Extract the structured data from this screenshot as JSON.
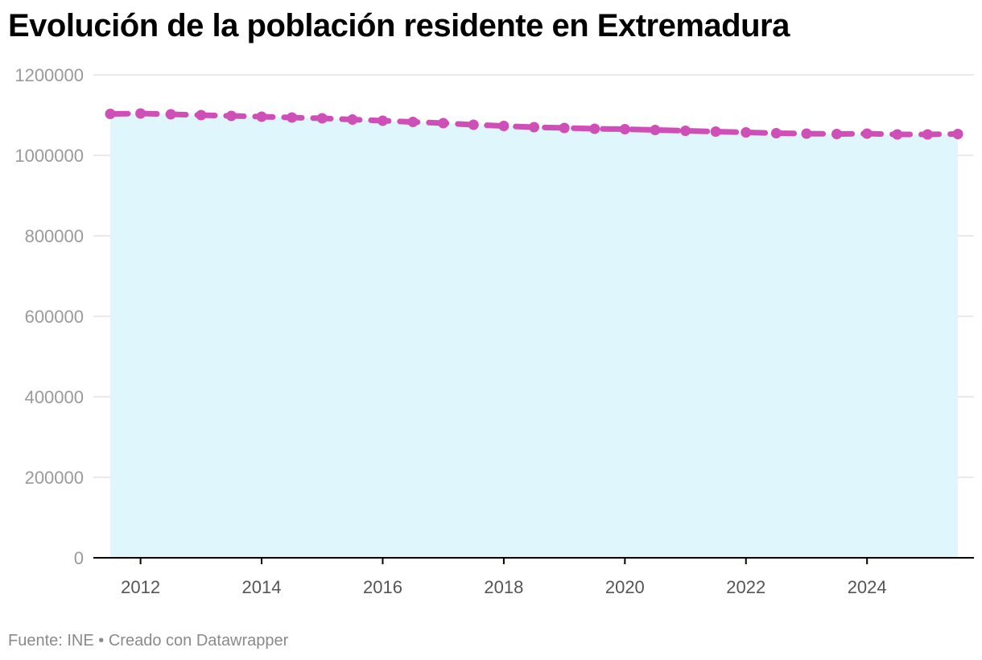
{
  "title": "Evolución de la población residente en Extremadura",
  "footer": {
    "source": "Fuente: INE",
    "separator": "•",
    "credit": "Creado con Datawrapper"
  },
  "colors": {
    "line": "#cf4fb8",
    "area": "#dff7fc",
    "grid": "#e3e3e3",
    "axis": "#000000"
  },
  "chart_data": {
    "type": "line",
    "title": "Evolución de la población residente en Extremadura",
    "xlabel": "",
    "ylabel": "",
    "x_ticks": [
      "2012",
      "2014",
      "2016",
      "2018",
      "2020",
      "2022",
      "2024"
    ],
    "y_ticks": [
      "0",
      "200000",
      "400000",
      "600000",
      "800000",
      "1000000",
      "1200000"
    ],
    "xlim": [
      2011.5,
      2025.5
    ],
    "ylim": [
      0,
      1200000
    ],
    "grid": true,
    "line_style": "dashed with markers",
    "series": [
      {
        "name": "",
        "x": [
          2011.5,
          2012,
          2012.5,
          2013,
          2013.5,
          2014,
          2014.5,
          2015,
          2015.5,
          2016,
          2016.5,
          2017,
          2017.5,
          2018,
          2018.5,
          2019,
          2019.5,
          2020,
          2020.5,
          2021,
          2021.5,
          2022,
          2022.5,
          2023,
          2023.5,
          2024,
          2024.5,
          2025,
          2025.5
        ],
        "values": [
          1103000,
          1104000,
          1102000,
          1100000,
          1098000,
          1096000,
          1094000,
          1092000,
          1089000,
          1086000,
          1083000,
          1080000,
          1076000,
          1073000,
          1070000,
          1068000,
          1066000,
          1065000,
          1063000,
          1061000,
          1059000,
          1057000,
          1055000,
          1054000,
          1053000,
          1054000,
          1052000,
          1052000,
          1053000
        ]
      }
    ]
  }
}
